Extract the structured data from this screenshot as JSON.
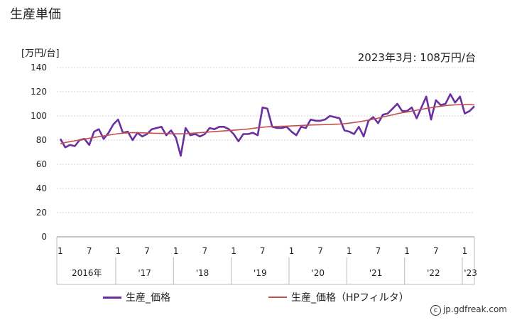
{
  "page": {
    "title": "生産単価"
  },
  "chart_data": {
    "type": "line",
    "unit_label": "[万円/台]",
    "latest_label": "2023年3月: 108万円/台",
    "ylim": [
      0,
      140
    ],
    "yticks": [
      "0",
      "20",
      "40",
      "60",
      "80",
      "100",
      "120",
      "140"
    ],
    "month_ticks": [
      {
        "i": 0,
        "label": "1"
      },
      {
        "i": 6,
        "label": "7"
      },
      {
        "i": 12,
        "label": "1"
      },
      {
        "i": 18,
        "label": "7"
      },
      {
        "i": 24,
        "label": "1"
      },
      {
        "i": 30,
        "label": "7"
      },
      {
        "i": 36,
        "label": "1"
      },
      {
        "i": 42,
        "label": "7"
      },
      {
        "i": 48,
        "label": "1"
      },
      {
        "i": 54,
        "label": "7"
      },
      {
        "i": 60,
        "label": "1"
      },
      {
        "i": 66,
        "label": "7"
      },
      {
        "i": 72,
        "label": "1"
      },
      {
        "i": 78,
        "label": "7"
      },
      {
        "i": 84,
        "label": "1"
      }
    ],
    "year_labels": [
      {
        "i": 5.5,
        "label": "2016年"
      },
      {
        "i": 17.5,
        "label": "'17"
      },
      {
        "i": 29.5,
        "label": "'18"
      },
      {
        "i": 41.5,
        "label": "'19"
      },
      {
        "i": 53.5,
        "label": "'20"
      },
      {
        "i": 65.5,
        "label": "'21"
      },
      {
        "i": 77.5,
        "label": "'22"
      },
      {
        "i": 85.2,
        "label": "'23"
      }
    ],
    "series": [
      {
        "name": "生産_価格",
        "color": "#6a2fa0",
        "values": [
          81,
          74,
          76,
          75,
          80,
          81,
          76,
          87,
          89,
          81,
          86,
          93,
          97,
          86,
          87,
          80,
          86,
          83,
          85,
          89,
          90,
          91,
          84,
          88,
          82,
          67,
          90,
          84,
          85,
          83,
          85,
          90,
          89,
          91,
          91,
          89,
          85,
          79,
          85,
          85,
          86,
          84,
          107,
          106,
          91,
          90,
          90,
          91,
          87,
          84,
          91,
          90,
          97,
          96,
          96,
          97,
          100,
          99,
          98,
          88,
          87,
          85,
          91,
          83,
          96,
          99,
          94,
          101,
          102,
          106,
          110,
          104,
          104,
          107,
          98,
          107,
          116,
          97,
          113,
          109,
          110,
          118,
          111,
          116,
          102,
          104,
          108
        ]
      },
      {
        "name": "生産_価格（HPフィルタ）",
        "color": "#c0504d",
        "values": [
          77,
          78,
          78.7,
          79.4,
          80.1,
          80.8,
          81.5,
          82.2,
          82.9,
          83.5,
          84.1,
          84.7,
          85.3,
          85.7,
          86,
          86.1,
          86.1,
          86,
          85.9,
          85.7,
          85.6,
          85.5,
          85.4,
          85.3,
          85.2,
          85.2,
          85.3,
          85.5,
          85.8,
          86.1,
          86.4,
          86.7,
          87,
          87.3,
          87.6,
          87.9,
          88.2,
          88.5,
          88.8,
          89.2,
          89.7,
          90.2,
          90.6,
          91,
          91.2,
          91.3,
          91.4,
          91.5,
          91.7,
          91.9,
          92.1,
          92.3,
          92.5,
          92.6,
          92.7,
          92.8,
          92.9,
          93.1,
          93.3,
          93.6,
          94,
          94.5,
          95.1,
          95.8,
          96.5,
          97.3,
          98.2,
          99.1,
          100,
          100.9,
          101.8,
          102.6,
          103.3,
          104,
          104.7,
          105.4,
          106.1,
          106.8,
          107.4,
          108,
          108.5,
          108.9,
          109.2,
          109.3,
          109.3,
          109.3,
          109.2
        ]
      }
    ]
  }
}
